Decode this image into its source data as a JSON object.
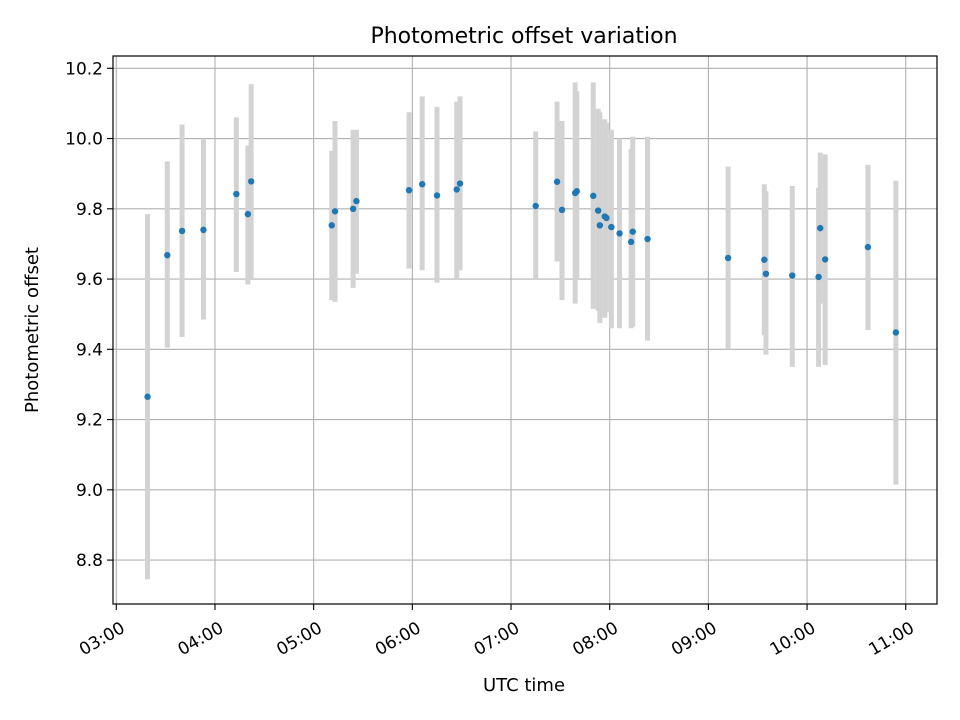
{
  "chart_data": {
    "type": "scatter",
    "title": "Photometric offset variation",
    "xlabel": "UTC time",
    "ylabel": "Photometric offset",
    "grid": true,
    "xlim": [
      "02:58",
      "11:19"
    ],
    "ylim": [
      8.675,
      10.235
    ],
    "xticks": [
      "03:00",
      "04:00",
      "05:00",
      "06:00",
      "07:00",
      "08:00",
      "09:00",
      "10:00",
      "11:00"
    ],
    "yticks": [
      8.8,
      9.0,
      9.2,
      9.4,
      9.6,
      9.8,
      10.0,
      10.2
    ],
    "point_color": "#1f77b4",
    "errorbar_color": "#d3d3d3",
    "points": [
      {
        "x": "03:19",
        "y": 9.265,
        "err_low": 8.745,
        "err_high": 9.785
      },
      {
        "x": "03:31",
        "y": 9.668,
        "err_low": 9.405,
        "err_high": 9.935
      },
      {
        "x": "03:40",
        "y": 9.737,
        "err_low": 9.435,
        "err_high": 10.04
      },
      {
        "x": "03:53",
        "y": 9.74,
        "err_low": 9.485,
        "err_high": 10.0
      },
      {
        "x": "04:13",
        "y": 9.842,
        "err_low": 9.62,
        "err_high": 10.06
      },
      {
        "x": "04:20",
        "y": 9.785,
        "err_low": 9.585,
        "err_high": 9.98
      },
      {
        "x": "04:22",
        "y": 9.878,
        "err_low": 9.6,
        "err_high": 10.155
      },
      {
        "x": "05:11",
        "y": 9.753,
        "err_low": 9.54,
        "err_high": 9.965
      },
      {
        "x": "05:13",
        "y": 9.793,
        "err_low": 9.535,
        "err_high": 10.05
      },
      {
        "x": "05:24",
        "y": 9.8,
        "err_low": 9.575,
        "err_high": 10.025
      },
      {
        "x": "05:26",
        "y": 9.822,
        "err_low": 9.615,
        "err_high": 10.025
      },
      {
        "x": "05:58",
        "y": 9.853,
        "err_low": 9.63,
        "err_high": 10.075
      },
      {
        "x": "06:06",
        "y": 9.87,
        "err_low": 9.625,
        "err_high": 10.12
      },
      {
        "x": "06:15",
        "y": 9.838,
        "err_low": 9.59,
        "err_high": 10.09
      },
      {
        "x": "06:27",
        "y": 9.855,
        "err_low": 9.6,
        "err_high": 10.105
      },
      {
        "x": "06:29",
        "y": 9.872,
        "err_low": 9.625,
        "err_high": 10.12
      },
      {
        "x": "07:15",
        "y": 9.808,
        "err_low": 9.6,
        "err_high": 10.02
      },
      {
        "x": "07:28",
        "y": 9.877,
        "err_low": 9.65,
        "err_high": 10.105
      },
      {
        "x": "07:31",
        "y": 9.797,
        "err_low": 9.54,
        "err_high": 10.05
      },
      {
        "x": "07:39",
        "y": 9.845,
        "err_low": 9.53,
        "err_high": 10.16
      },
      {
        "x": "07:40",
        "y": 9.85,
        "err_low": 9.6,
        "err_high": 10.135
      },
      {
        "x": "07:50",
        "y": 9.837,
        "err_low": 9.515,
        "err_high": 10.16
      },
      {
        "x": "07:53",
        "y": 9.795,
        "err_low": 9.51,
        "err_high": 10.085
      },
      {
        "x": "07:54",
        "y": 9.753,
        "err_low": 9.475,
        "err_high": 10.075
      },
      {
        "x": "07:57",
        "y": 9.778,
        "err_low": 9.49,
        "err_high": 10.055
      },
      {
        "x": "07:58",
        "y": 9.774,
        "err_low": 9.505,
        "err_high": 10.045
      },
      {
        "x": "08:01",
        "y": 9.748,
        "err_low": 9.46,
        "err_high": 10.025
      },
      {
        "x": "08:06",
        "y": 9.73,
        "err_low": 9.46,
        "err_high": 10.0
      },
      {
        "x": "08:13",
        "y": 9.706,
        "err_low": 9.46,
        "err_high": 9.97
      },
      {
        "x": "08:14",
        "y": 9.735,
        "err_low": 9.465,
        "err_high": 10.005
      },
      {
        "x": "08:23",
        "y": 9.714,
        "err_low": 9.425,
        "err_high": 10.005
      },
      {
        "x": "09:12",
        "y": 9.66,
        "err_low": 9.4,
        "err_high": 9.92
      },
      {
        "x": "09:34",
        "y": 9.655,
        "err_low": 9.44,
        "err_high": 9.87
      },
      {
        "x": "09:35",
        "y": 9.615,
        "err_low": 9.385,
        "err_high": 9.85
      },
      {
        "x": "09:51",
        "y": 9.61,
        "err_low": 9.35,
        "err_high": 9.865
      },
      {
        "x": "10:07",
        "y": 9.606,
        "err_low": 9.35,
        "err_high": 9.86
      },
      {
        "x": "10:08",
        "y": 9.745,
        "err_low": 9.53,
        "err_high": 9.96
      },
      {
        "x": "10:11",
        "y": 9.656,
        "err_low": 9.355,
        "err_high": 9.955
      },
      {
        "x": "10:37",
        "y": 9.691,
        "err_low": 9.455,
        "err_high": 9.925
      },
      {
        "x": "10:54",
        "y": 9.448,
        "err_low": 9.015,
        "err_high": 9.88
      }
    ]
  }
}
